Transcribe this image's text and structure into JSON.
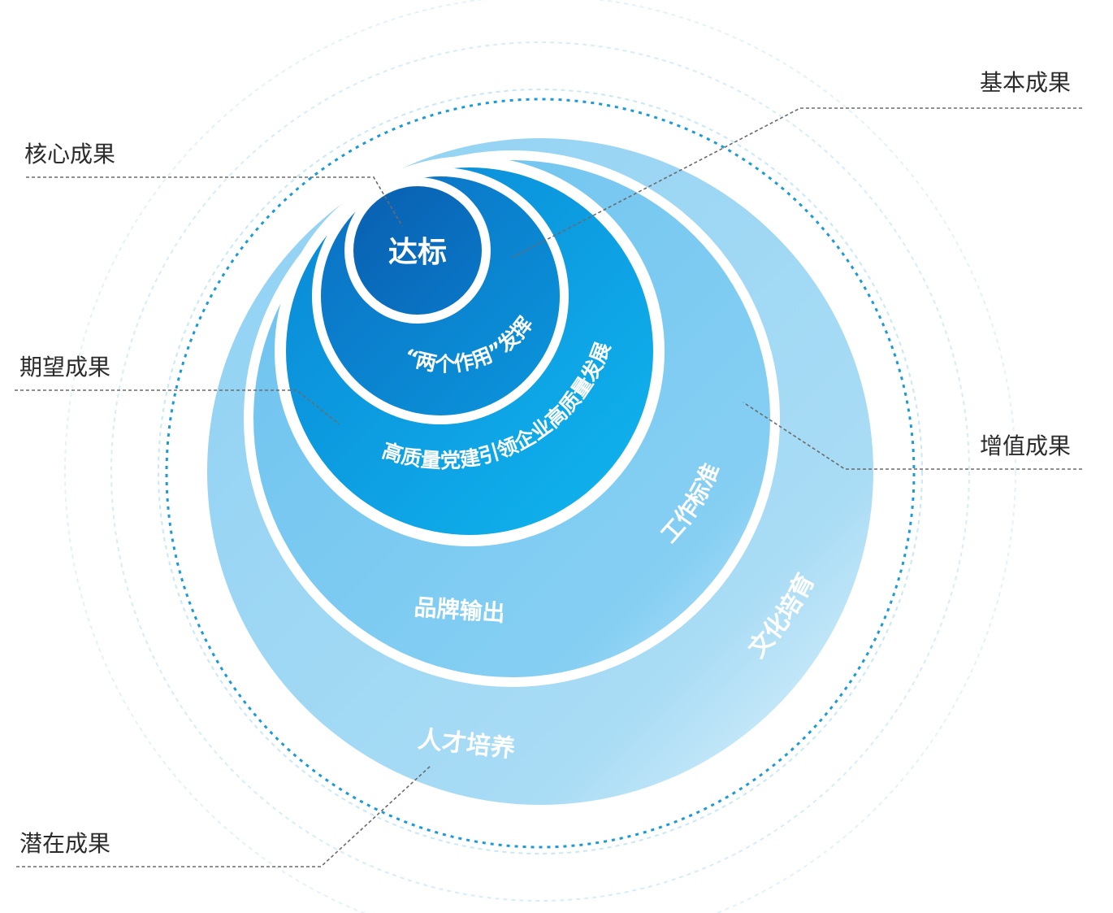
{
  "labels": {
    "core": "核心成果",
    "expected": "期望成果",
    "potential": "潜在成果",
    "basic": "基本成果",
    "value_added": "增值成果"
  },
  "circles": {
    "center": "达标",
    "two_roles": "“两个作用”发挥",
    "high_quality": "高质量党建引领企业高质量发展",
    "work_standard": "工作标准",
    "brand_output": "品牌输出",
    "culture": "文化培育",
    "talent": "人才培养"
  },
  "colors": {
    "center": "#0a6cbd",
    "ring2": "#0b8fd9",
    "ring3": "#0aa6e8",
    "ring4": "#7ecbf1",
    "ring5": "#a9dcf5",
    "dotted": "#1a9ad8",
    "leader": "#6b6b6b",
    "text": "#2b2b2b"
  }
}
